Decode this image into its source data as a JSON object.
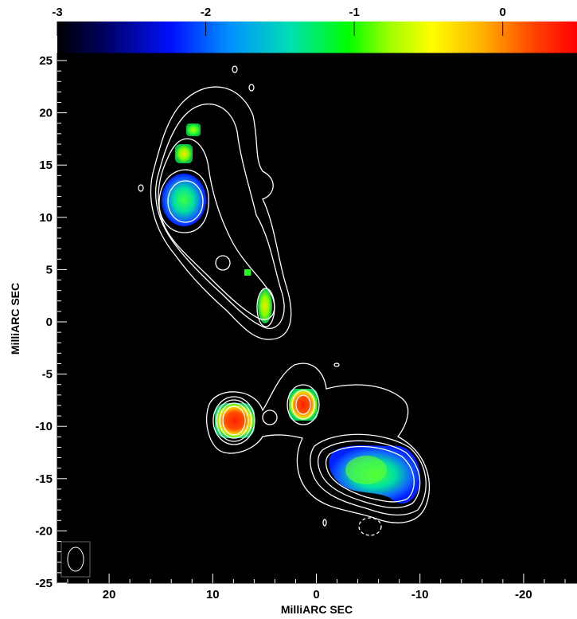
{
  "chart_data": {
    "type": "heatmap",
    "title": "",
    "xlabel": "MilliARC SEC",
    "ylabel": "MilliARC SEC",
    "xlim": [
      25,
      -25
    ],
    "ylim": [
      -25,
      25
    ],
    "x_ticks": [
      20,
      10,
      0,
      -10,
      -20
    ],
    "y_ticks": [
      25,
      20,
      15,
      10,
      5,
      0,
      -5,
      -10,
      -15,
      -20,
      -25
    ],
    "colorbar": {
      "range": [
        -3,
        0.5
      ],
      "ticks": [
        -3,
        -2,
        -1,
        0
      ],
      "colormap": "rainbow (black-blue-cyan-green-yellow-orange-red)"
    },
    "background_color": "#000000",
    "contour_color": "#ffffff",
    "features": [
      {
        "name": "NW core knot",
        "x": 13.3,
        "y": 11.3,
        "value": -1.5
      },
      {
        "name": "NW upper knot",
        "x": 12.8,
        "y": 15.5,
        "value": -0.8
      },
      {
        "name": "NW top knot",
        "x": 12.5,
        "y": 18.0,
        "value": -1.1
      },
      {
        "name": "NW lower knot",
        "x": 5.2,
        "y": 1.0,
        "value": -0.8
      },
      {
        "name": "SE left bright knot",
        "x": 8.5,
        "y": -10.0,
        "value": 0.2
      },
      {
        "name": "SE middle bright knot",
        "x": 1.8,
        "y": -8.5,
        "value": 0.3
      },
      {
        "name": "SE extended lobe",
        "x": -6.5,
        "y": -15.0,
        "value": -1.8
      }
    ],
    "beam": {
      "x": 23.5,
      "y": -23.2,
      "major": 3.0,
      "minor": 1.8
    }
  }
}
